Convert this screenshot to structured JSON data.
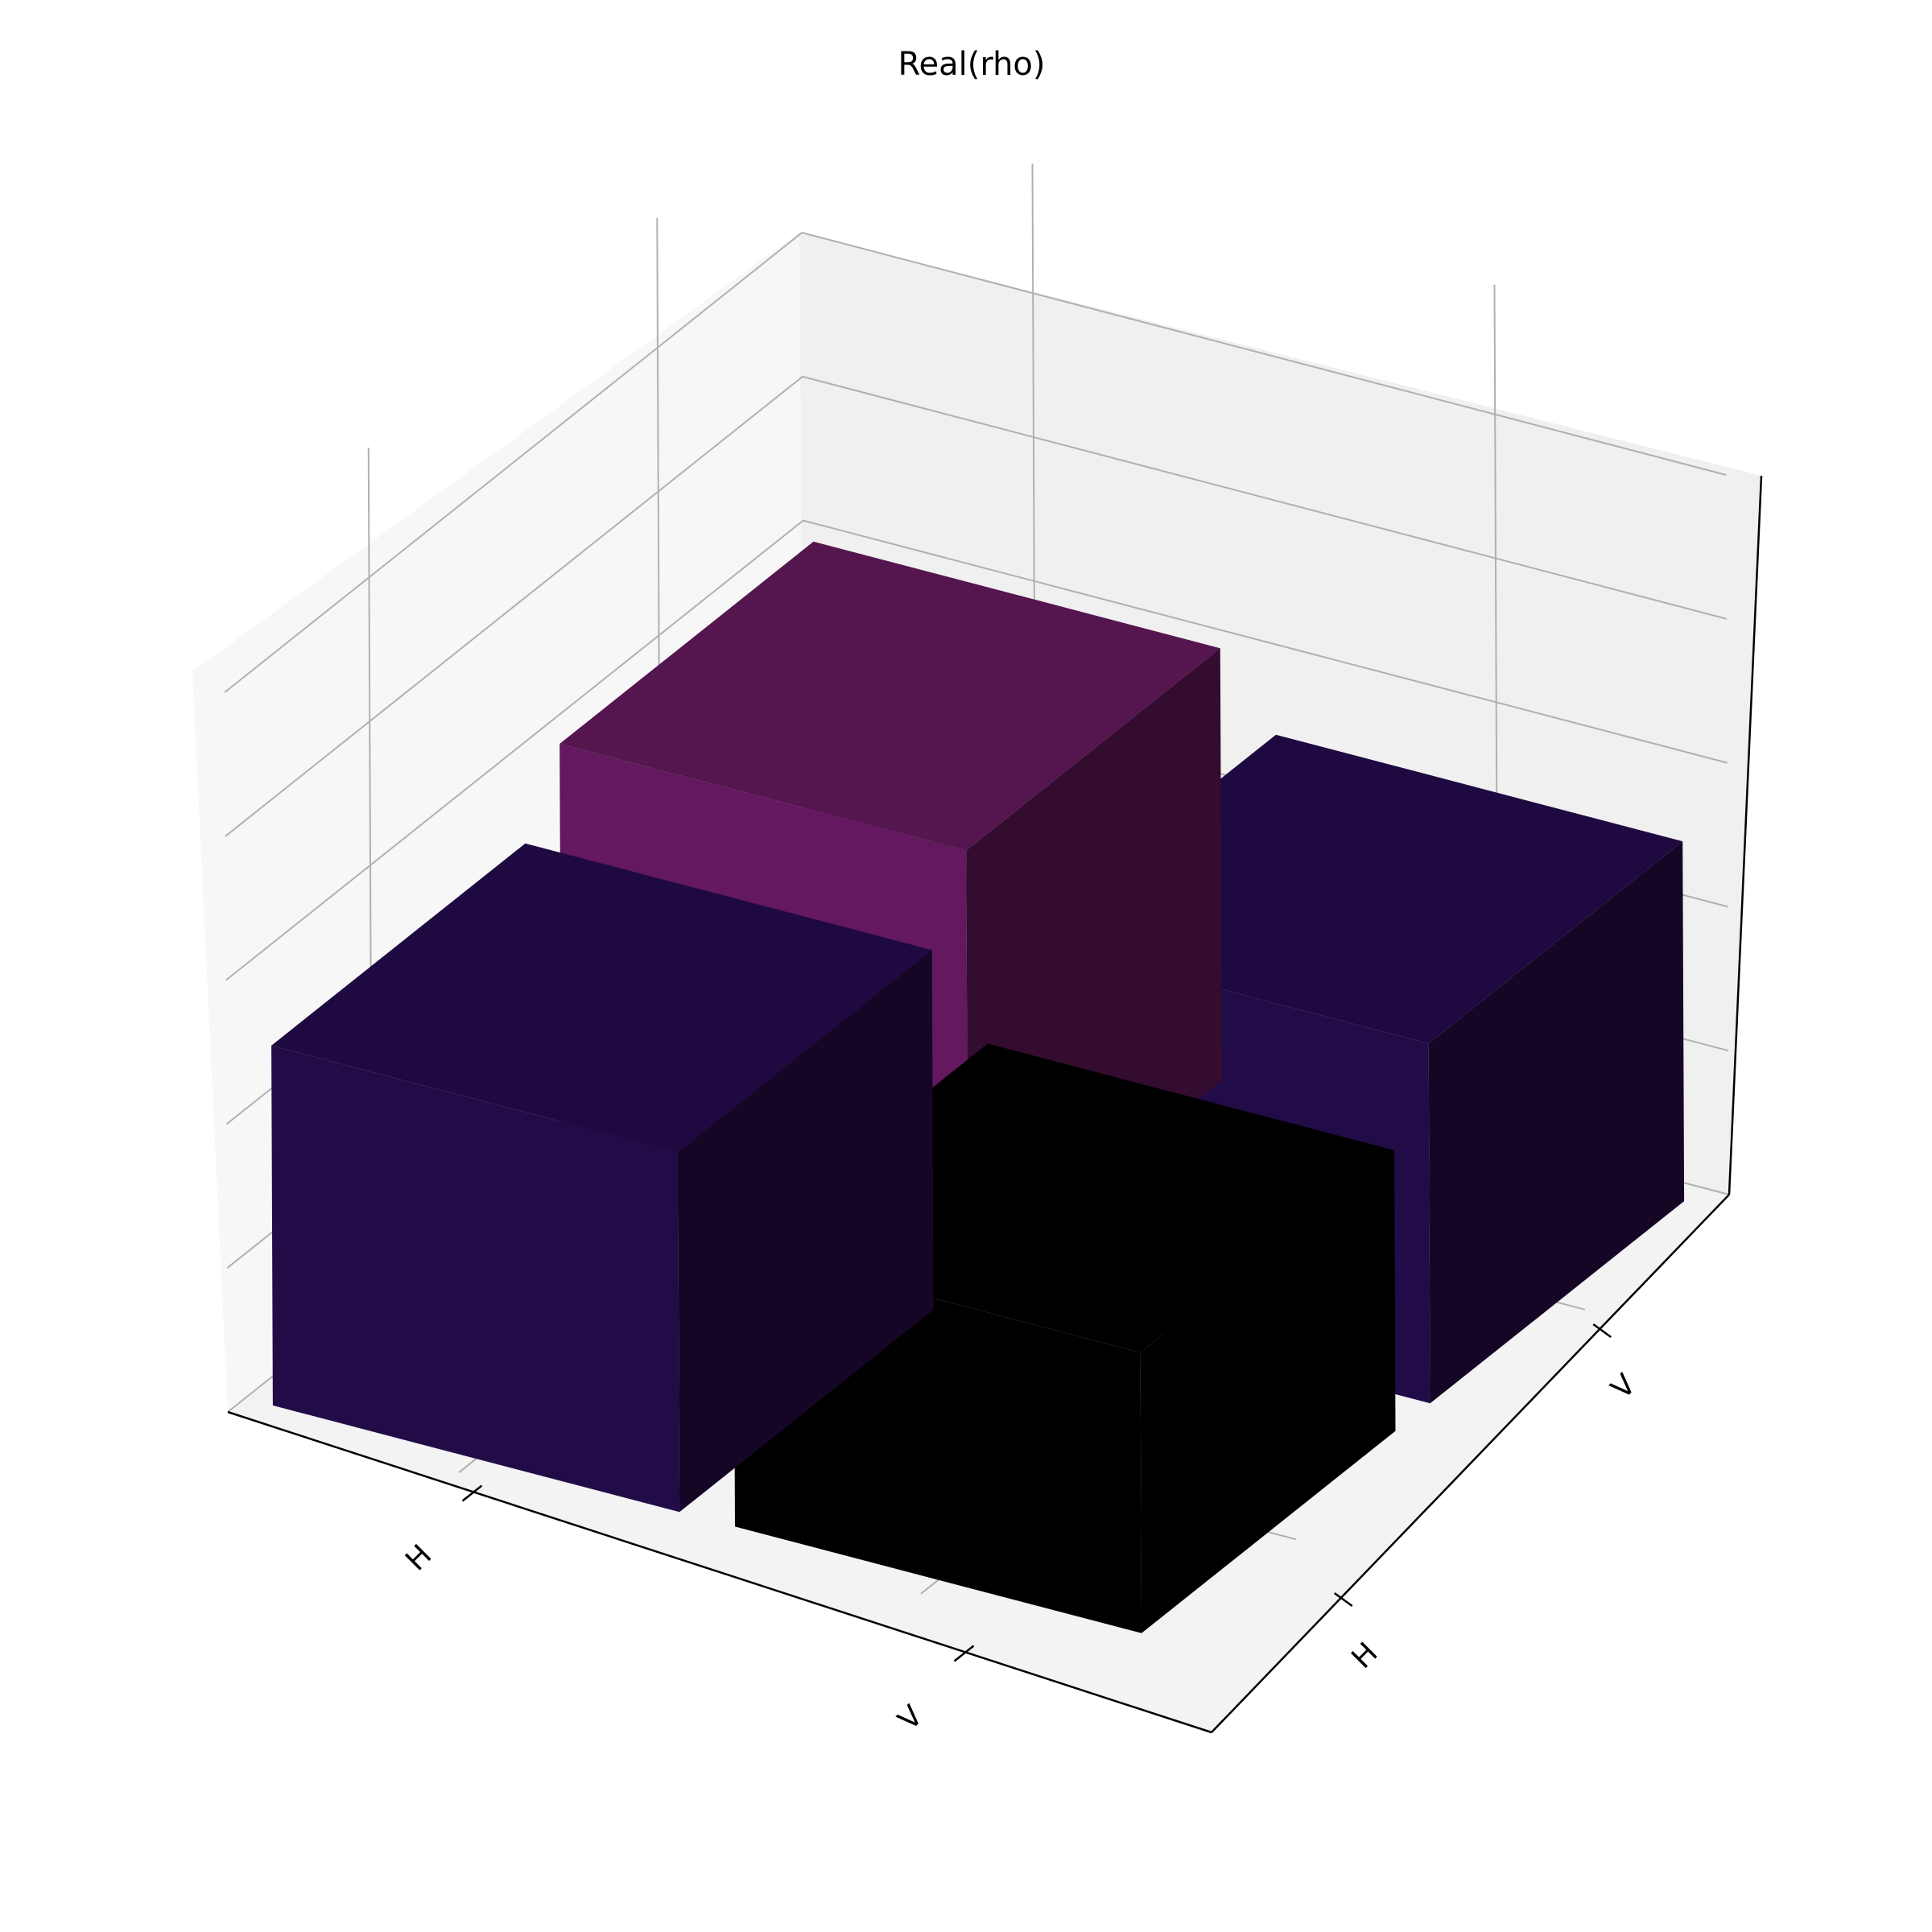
{
  "chart_data": {
    "type": "bar3d",
    "title": "Real(rho)",
    "x_tick_labels": [
      "H",
      "V"
    ],
    "y_tick_labels": [
      "H",
      "V"
    ],
    "z_ticks": [
      "0.0",
      "0.2",
      "0.4",
      "0.6",
      "0.8",
      "1.0"
    ],
    "zlim": [
      0,
      1
    ],
    "grid": true,
    "bars": [
      {
        "row": "H",
        "col": "H",
        "value": 0.6,
        "top_color": "#55154f",
        "front_color": "#63185f",
        "side_color": "#330c2f"
      },
      {
        "row": "H",
        "col": "V",
        "value": 0.5,
        "top_color": "#1e0a40",
        "front_color": "#220c48",
        "side_color": "#150626"
      },
      {
        "row": "V",
        "col": "H",
        "value": 0.5,
        "top_color": "#1e0a40",
        "front_color": "#220c48",
        "side_color": "#150626"
      },
      {
        "row": "V",
        "col": "V",
        "value": 0.39,
        "top_color": "#000000",
        "front_color": "#000000",
        "side_color": "#000000"
      }
    ]
  }
}
